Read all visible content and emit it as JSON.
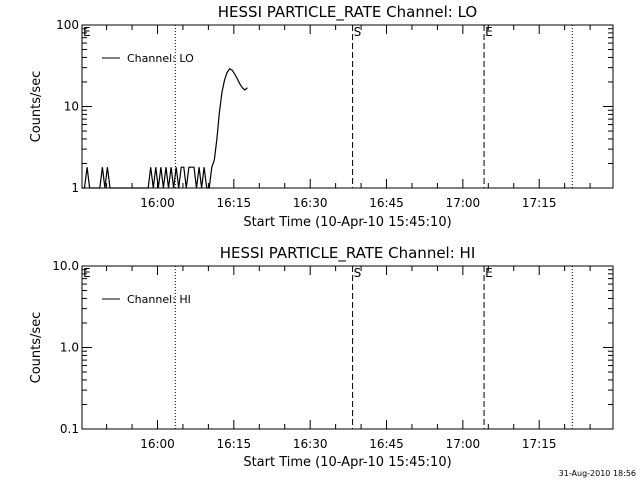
{
  "chart_data": [
    {
      "type": "line",
      "title": "HESSI PARTICLE_RATE Channel: LO",
      "xlabel": "Start Time (10-Apr-10 15:45:10)",
      "ylabel": "Counts/sec",
      "y_scale": "log",
      "ylim": [
        1,
        100
      ],
      "xlim": [
        "15:45:10",
        "17:29:30"
      ],
      "x_ticks": [
        "16:00",
        "16:15",
        "16:30",
        "16:45",
        "17:00",
        "17:15"
      ],
      "y_ticks": [
        "1",
        "10",
        "100"
      ],
      "grid": false,
      "legend": {
        "placement": "top-left",
        "entries": [
          "Channel: LO"
        ]
      },
      "markers": [
        {
          "label": "E",
          "time": "15:45:10",
          "style": "dotted"
        },
        {
          "label": "",
          "time": "16:03:30",
          "style": "dotted"
        },
        {
          "label": "S",
          "time": "16:38:20",
          "style": "dashed"
        },
        {
          "label": "E",
          "time": "17:04:10",
          "style": "dashed"
        },
        {
          "label": "",
          "time": "17:21:30",
          "style": "dotted"
        }
      ],
      "series": [
        {
          "x": [
            "15:45:10",
            "15:45:40",
            "15:46:10",
            "15:46:40",
            "15:47:10",
            "15:47:40",
            "15:48:10",
            "15:48:40",
            "15:49:10",
            "15:49:40",
            "15:50:10",
            "15:50:40",
            "15:51:10",
            "15:51:40",
            "15:52:10",
            "15:52:40",
            "15:53:10",
            "15:53:40",
            "15:54:10",
            "15:54:40",
            "15:55:10",
            "15:55:40",
            "15:56:10",
            "15:56:40",
            "15:57:10",
            "15:57:40",
            "15:58:10",
            "15:58:40",
            "15:59:10",
            "15:59:40",
            "16:00:10",
            "16:00:40",
            "16:01:10",
            "16:01:40",
            "16:02:10",
            "16:02:40",
            "16:03:10",
            "16:03:40",
            "16:04:10",
            "16:04:40",
            "16:05:10",
            "16:05:40",
            "16:06:10",
            "16:06:40",
            "16:07:10",
            "16:07:40",
            "16:08:10",
            "16:08:40",
            "16:09:10",
            "16:09:40",
            "16:10:10",
            "16:10:40",
            "16:11:10",
            "16:11:40",
            "16:12:10",
            "16:12:40",
            "16:13:10",
            "16:13:40",
            "16:14:10",
            "16:14:40",
            "16:15:10",
            "16:15:40",
            "16:16:10",
            "16:16:40",
            "16:17:10",
            "16:17:40"
          ],
          "values": [
            1,
            1,
            1.8,
            1,
            1,
            1,
            1,
            1,
            1.8,
            1,
            1.8,
            1,
            1,
            1,
            1,
            1,
            1,
            1,
            1,
            1,
            1,
            1,
            1,
            1,
            1,
            1,
            1,
            1.8,
            1,
            1.8,
            1,
            1.8,
            1,
            1.8,
            1,
            1.8,
            1,
            1.8,
            1,
            1.8,
            1.8,
            1,
            1.8,
            1.8,
            1.8,
            1,
            1.8,
            1,
            1.8,
            1,
            1,
            1.8,
            2.2,
            4,
            8.5,
            15,
            21,
            26,
            29,
            28,
            25,
            22,
            19,
            17,
            16,
            17
          ]
        }
      ]
    },
    {
      "type": "line",
      "title": "HESSI PARTICLE_RATE Channel: HI",
      "xlabel": "Start Time (10-Apr-10 15:45:10)",
      "ylabel": "Counts/sec",
      "y_scale": "log",
      "ylim": [
        0.1,
        10
      ],
      "xlim": [
        "15:45:10",
        "17:29:30"
      ],
      "x_ticks": [
        "16:00",
        "16:15",
        "16:30",
        "16:45",
        "17:00",
        "17:15"
      ],
      "y_ticks": [
        "0.1",
        "1.0",
        "10.0"
      ],
      "grid": false,
      "legend": {
        "placement": "top-left",
        "entries": [
          "Channel: HI"
        ]
      },
      "markers": [
        {
          "label": "E",
          "time": "15:45:10",
          "style": "dotted"
        },
        {
          "label": "",
          "time": "16:03:30",
          "style": "dotted"
        },
        {
          "label": "S",
          "time": "16:38:20",
          "style": "dashed"
        },
        {
          "label": "E",
          "time": "17:04:10",
          "style": "dashed"
        },
        {
          "label": "",
          "time": "17:21:30",
          "style": "dotted"
        }
      ],
      "series": [
        {
          "x": [],
          "values": []
        }
      ]
    }
  ],
  "footer": {
    "timestamp": "31-Aug-2010 18:56"
  }
}
